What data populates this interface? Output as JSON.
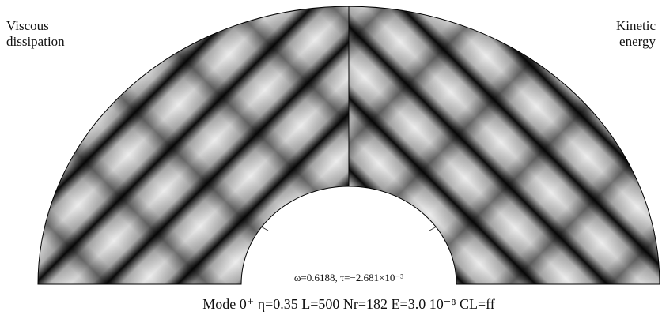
{
  "labels": {
    "left": [
      "Viscous",
      "dissipation"
    ],
    "right": [
      "Kinetic",
      "energy"
    ]
  },
  "inner_label": "ω=0.6188, τ=−2.681×10⁻³",
  "caption": "Mode 0⁺ η=0.35 L=500 Nr=182 E=3.0 10⁻⁸ CL=ff"
}
